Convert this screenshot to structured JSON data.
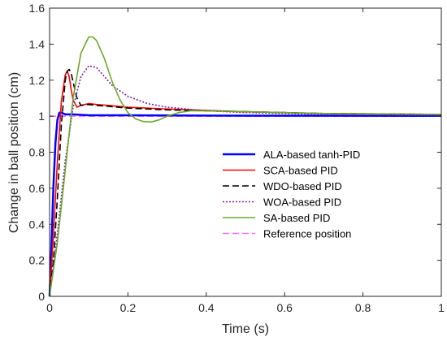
{
  "chart_data": {
    "type": "line",
    "title": "",
    "xlabel": "Time (s)",
    "ylabel": "Change in ball position (cm)",
    "xlim": [
      0,
      1
    ],
    "ylim": [
      0,
      1.6
    ],
    "x_ticks": [
      "0",
      "0.2",
      "0.4",
      "0.6",
      "0.8",
      "1"
    ],
    "y_ticks": [
      "0",
      "0.2",
      "0.4",
      "0.6",
      "0.8",
      "1",
      "1.2",
      "1.4",
      "1.6"
    ],
    "grid": false,
    "legend_position": "center-right",
    "series": [
      {
        "name": "ALA-based tanh-PID",
        "color": "#0000ff",
        "dash": "solid",
        "x": [
          0,
          0.005,
          0.01,
          0.015,
          0.02,
          0.025,
          0.03,
          0.04,
          0.06,
          0.1,
          0.2,
          0.5,
          1.0
        ],
        "y": [
          0,
          0.3,
          0.62,
          0.85,
          0.98,
          1.02,
          1.02,
          1.01,
          1.01,
          1.005,
          1.005,
          1.003,
          1.002
        ]
      },
      {
        "name": "SCA-based PID",
        "color": "#ff0000",
        "dash": "solid",
        "x": [
          0,
          0.01,
          0.02,
          0.03,
          0.04,
          0.045,
          0.05,
          0.055,
          0.06,
          0.07,
          0.08,
          0.1,
          0.12,
          0.15,
          0.2,
          0.3,
          0.5,
          0.7,
          1.0
        ],
        "y": [
          0,
          0.35,
          0.75,
          1.08,
          1.23,
          1.25,
          1.22,
          1.15,
          1.09,
          1.05,
          1.06,
          1.07,
          1.065,
          1.06,
          1.05,
          1.04,
          1.025,
          1.015,
          1.01
        ]
      },
      {
        "name": "WDO-based PID",
        "color": "#000000",
        "dash": "dashed",
        "x": [
          0,
          0.01,
          0.02,
          0.03,
          0.04,
          0.045,
          0.05,
          0.055,
          0.06,
          0.07,
          0.08,
          0.1,
          0.12,
          0.15,
          0.2,
          0.3,
          0.5,
          0.7,
          1.0
        ],
        "y": [
          0,
          0.2,
          0.55,
          0.95,
          1.2,
          1.25,
          1.26,
          1.24,
          1.19,
          1.1,
          1.06,
          1.065,
          1.06,
          1.055,
          1.045,
          1.035,
          1.025,
          1.015,
          1.01
        ]
      },
      {
        "name": "WOA-based PID",
        "color": "#7b1fa2",
        "dash": "dotted",
        "x": [
          0,
          0.02,
          0.04,
          0.06,
          0.08,
          0.1,
          0.12,
          0.14,
          0.16,
          0.2,
          0.25,
          0.3,
          0.4,
          0.5,
          0.7,
          1.0
        ],
        "y": [
          0,
          0.35,
          0.75,
          1.05,
          1.22,
          1.28,
          1.27,
          1.22,
          1.17,
          1.11,
          1.07,
          1.05,
          1.03,
          1.02,
          1.01,
          1.005
        ]
      },
      {
        "name": "SA-based PID",
        "color": "#6aaa28",
        "dash": "solid",
        "x": [
          0,
          0.02,
          0.04,
          0.06,
          0.08,
          0.1,
          0.11,
          0.12,
          0.14,
          0.16,
          0.18,
          0.2,
          0.22,
          0.24,
          0.26,
          0.28,
          0.3,
          0.33,
          0.36,
          0.4,
          0.5,
          0.7,
          1.0
        ],
        "y": [
          0,
          0.3,
          0.7,
          1.1,
          1.35,
          1.44,
          1.44,
          1.42,
          1.32,
          1.19,
          1.09,
          1.02,
          0.985,
          0.97,
          0.968,
          0.98,
          1.0,
          1.02,
          1.03,
          1.03,
          1.025,
          1.015,
          1.01
        ]
      },
      {
        "name": "Reference position",
        "color": "#ff66ff",
        "dash": "dashed",
        "x": [
          0,
          1
        ],
        "y": [
          1,
          1
        ]
      }
    ]
  }
}
